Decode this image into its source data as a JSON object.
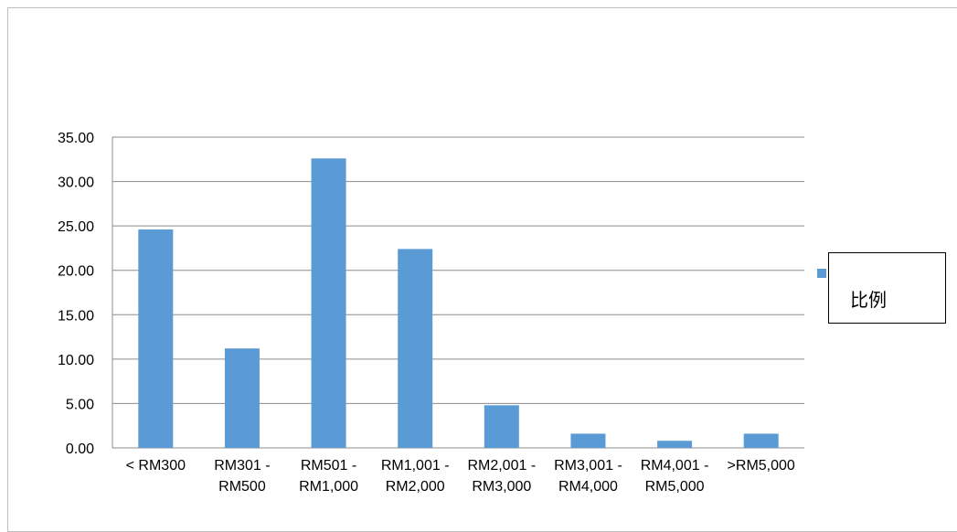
{
  "chart_data": {
    "type": "bar",
    "title": "",
    "xlabel": "",
    "ylabel": "",
    "categories": [
      [
        "< RM300"
      ],
      [
        "RM301 -",
        "RM500"
      ],
      [
        "RM501 -",
        "RM1,000"
      ],
      [
        "RM1,001 -",
        "RM2,000"
      ],
      [
        "RM2,001 -",
        "RM3,000"
      ],
      [
        "RM3,001 -",
        "RM4,000"
      ],
      [
        "RM4,001 -",
        "RM5,000"
      ],
      [
        ">RM5,000"
      ]
    ],
    "series": [
      {
        "name": "比例",
        "values": [
          24.6,
          11.2,
          32.6,
          22.4,
          4.8,
          1.6,
          0.8,
          1.6
        ]
      }
    ],
    "ylim": [
      0,
      35
    ],
    "yticks": [
      "0.00",
      "5.00",
      "10.00",
      "15.00",
      "20.00",
      "25.00",
      "30.00",
      "35.00"
    ],
    "ytick_values": [
      0,
      5,
      10,
      15,
      20,
      25,
      30,
      35
    ],
    "grid": true,
    "legend_position": "right",
    "colors": {
      "bar": "#5b9bd5",
      "grid": "#8c8c8c",
      "axis": "#8c8c8c"
    }
  }
}
